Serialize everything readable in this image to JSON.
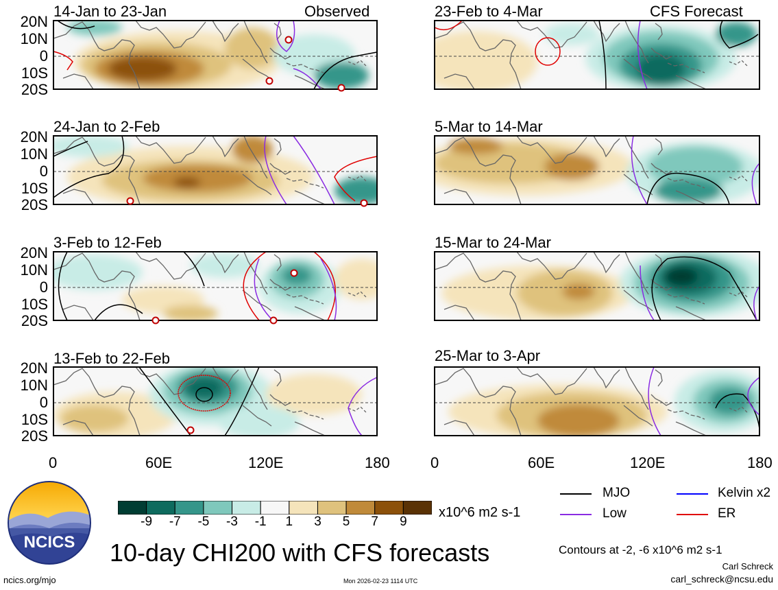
{
  "figure_title": "10-day CHI200 with CFS forecasts",
  "observed_label": "Observed",
  "forecast_label": "CFS Forecast",
  "panels": [
    {
      "period": "14-Jan to 23-Jan"
    },
    {
      "period": "24-Jan to 2-Feb"
    },
    {
      "period": "3-Feb to 12-Feb"
    },
    {
      "period": "13-Feb to 22-Feb"
    },
    {
      "period": "23-Feb to 4-Mar"
    },
    {
      "period": "5-Mar to 14-Mar"
    },
    {
      "period": "15-Mar to 24-Mar"
    },
    {
      "period": "25-Mar to 3-Apr"
    }
  ],
  "lat_labels": [
    "20N",
    "10N",
    "0",
    "10S",
    "20S"
  ],
  "lon_labels": [
    "0",
    "60E",
    "120E",
    "180"
  ],
  "colorbar": {
    "ticks": [
      "-9",
      "-7",
      "-5",
      "-3",
      "-1",
      "1",
      "3",
      "5",
      "7",
      "9"
    ],
    "colors": [
      "#003d33",
      "#0e6b5e",
      "#35968a",
      "#7fc8bc",
      "#c8ece6",
      "#f7f7f7",
      "#f5e4bb",
      "#dfc27d",
      "#c08a3a",
      "#8c510a",
      "#5a3205"
    ],
    "units": "x10^6 m2 s-1"
  },
  "legend": {
    "items": [
      {
        "label": "MJO",
        "color": "#000000"
      },
      {
        "label": "Kelvin x2",
        "color": "#0000ff"
      },
      {
        "label": "Low",
        "color": "#8a2be2"
      },
      {
        "label": "ER",
        "color": "#e00000"
      }
    ],
    "contour_note": "Contours at -2, -6 x10^6 m2 s-1"
  },
  "logo_text": "NCICS",
  "author": "Carl Schreck",
  "email": "carl_schreck@ncsu.edu",
  "website": "ncics.org/mjo",
  "timestamp": "Mon 2026-02-23 1114 UTC"
}
